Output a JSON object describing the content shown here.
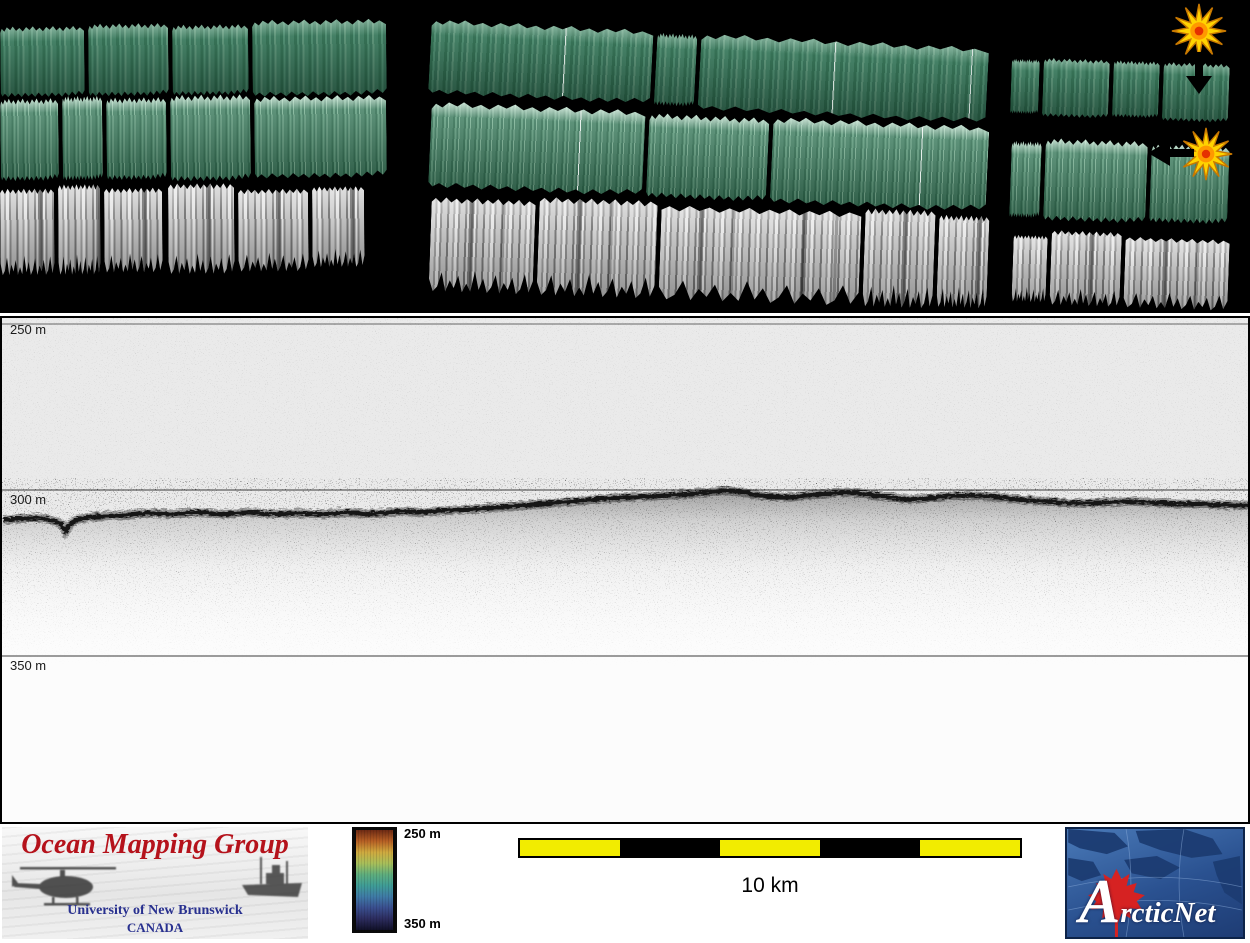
{
  "top_panel": {
    "markers": [
      {
        "name": "event-marker-top",
        "arrow_direction": "down"
      },
      {
        "name": "event-marker-middle",
        "arrow_direction": "left"
      }
    ],
    "colors": {
      "background": "#000000",
      "swath_green": "#3f7f5f",
      "swath_green_light": "#9cc7ab",
      "swath_green_dark": "#2c6a4d",
      "backscatter_gray": "#a0a0a0",
      "marker_yellow": "#ffd300",
      "marker_orange": "#ff9800",
      "marker_red": "#e53000"
    }
  },
  "profile_panel": {
    "depth_labels": [
      "250 m",
      "300 m",
      "350 m"
    ],
    "water_column_color": "#eaeaea"
  },
  "footer": {
    "omg": {
      "title": "Ocean Mapping Group",
      "subtitle": "University of New Brunswick",
      "country": "CANADA",
      "title_color": "#b5121b",
      "text_color": "#28308f"
    },
    "colorbar": {
      "top_label": "250 m",
      "bottom_label": "350 m",
      "gradient": [
        "#6e2a14",
        "#b65f24",
        "#cfa93f",
        "#a8bf5a",
        "#5fae7d",
        "#3f9d96",
        "#3f7aa6",
        "#3a4e8e",
        "#2c2c5e",
        "#101028"
      ]
    },
    "scalebar": {
      "label": "10 km",
      "segment_colors": [
        "#f2ec00",
        "#000000",
        "#f2ec00",
        "#000000",
        "#f2ec00"
      ]
    },
    "arcticnet": {
      "wordmark": "ArcticNet",
      "bg_color": "#2a5190",
      "leaf_color": "#d62222"
    }
  }
}
